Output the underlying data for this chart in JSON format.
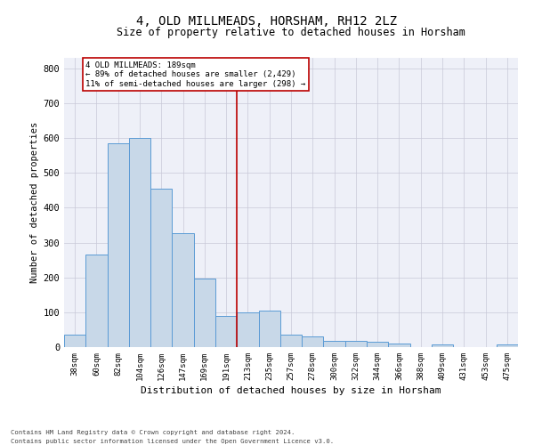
{
  "title1": "4, OLD MILLMEADS, HORSHAM, RH12 2LZ",
  "title2": "Size of property relative to detached houses in Horsham",
  "xlabel": "Distribution of detached houses by size in Horsham",
  "ylabel": "Number of detached properties",
  "footnote1": "Contains HM Land Registry data © Crown copyright and database right 2024.",
  "footnote2": "Contains public sector information licensed under the Open Government Licence v3.0.",
  "categories": [
    "38sqm",
    "60sqm",
    "82sqm",
    "104sqm",
    "126sqm",
    "147sqm",
    "169sqm",
    "191sqm",
    "213sqm",
    "235sqm",
    "257sqm",
    "278sqm",
    "300sqm",
    "322sqm",
    "344sqm",
    "366sqm",
    "388sqm",
    "409sqm",
    "431sqm",
    "453sqm",
    "475sqm"
  ],
  "values": [
    35,
    265,
    585,
    600,
    455,
    328,
    196,
    90,
    100,
    105,
    35,
    30,
    18,
    17,
    15,
    10,
    0,
    7,
    0,
    0,
    7
  ],
  "bar_color": "#c8d8e8",
  "bar_edge_color": "#5b9bd5",
  "grid_color": "#c8c8d8",
  "background_color": "#eef0f8",
  "vline_index": 7.5,
  "vline_color": "#bb0000",
  "annotation_line1": "4 OLD MILLMEADS: 189sqm",
  "annotation_line2": "← 89% of detached houses are smaller (2,429)",
  "annotation_line3": "11% of semi-detached houses are larger (298) →",
  "annotation_box_color": "#bb0000",
  "ylim": [
    0,
    830
  ],
  "yticks": [
    0,
    100,
    200,
    300,
    400,
    500,
    600,
    700,
    800
  ]
}
